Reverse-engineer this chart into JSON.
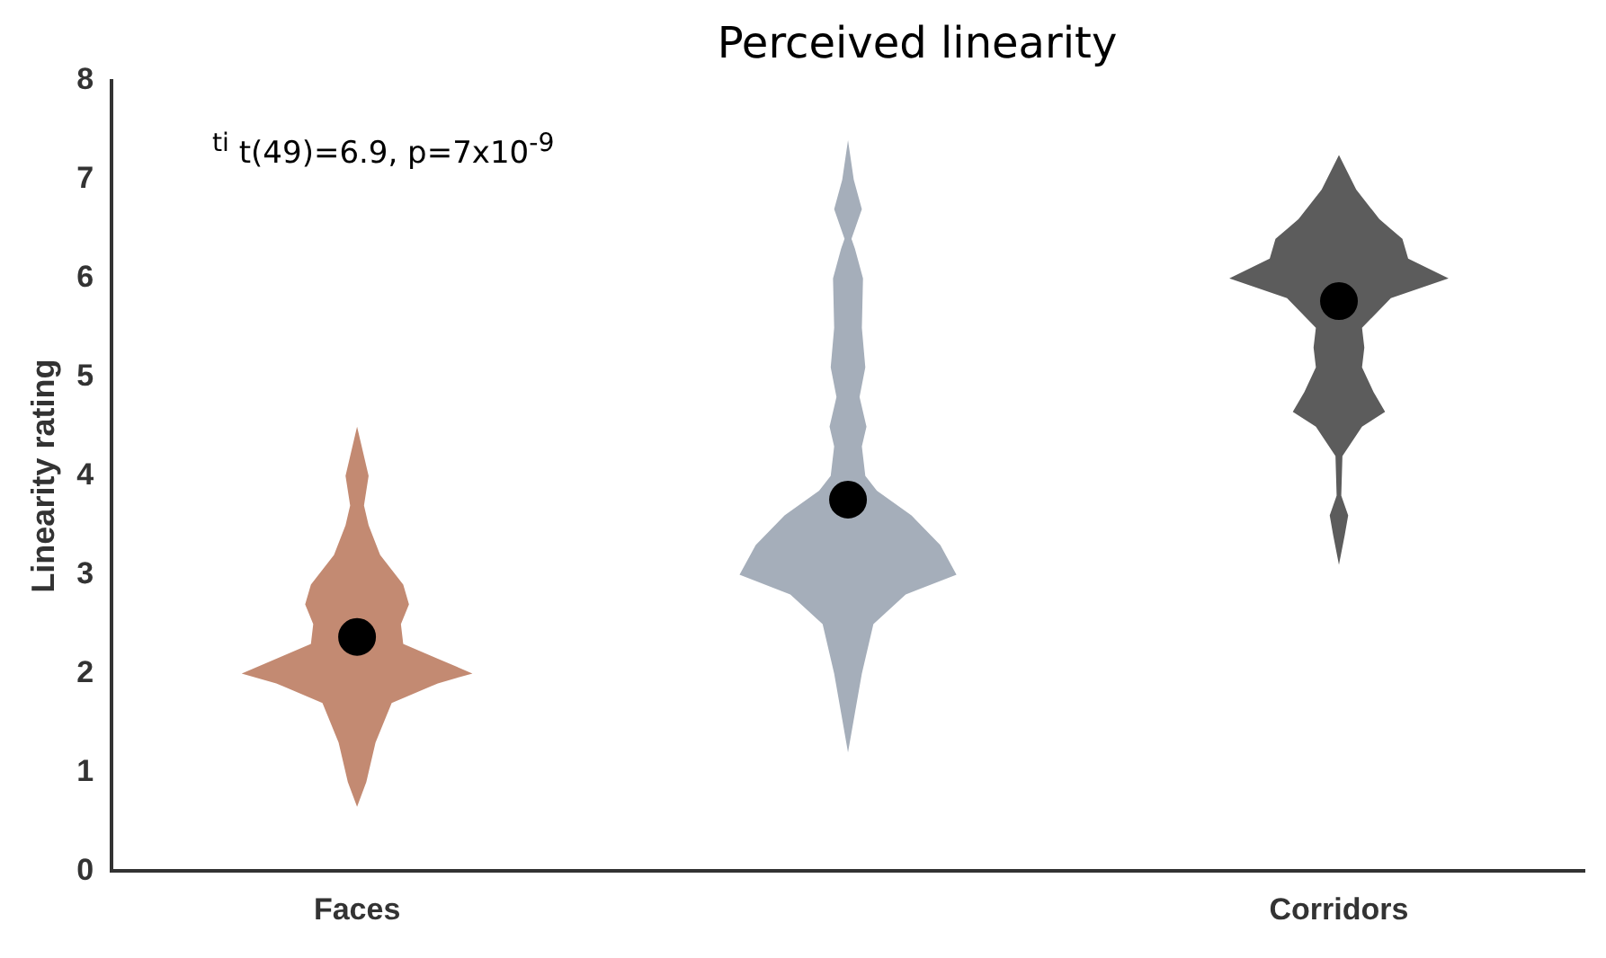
{
  "chart_data": {
    "type": "scatter",
    "title": "Perceived linearity",
    "ylabel": "Linearity rating",
    "categories": [
      "Faces",
      null,
      "Corridors"
    ],
    "ylim": [
      0,
      8
    ],
    "yticks": [
      0,
      1,
      2,
      3,
      4,
      5,
      6,
      7,
      8
    ],
    "grid": false,
    "legend": false,
    "marker": "circle",
    "annotations": [
      "$^{ti}$ t(49)=6.9, p=7x10$^{-9}$"
    ],
    "series": [
      {
        "color": "#000000",
        "values": [
          2.37,
          3.76,
          5.77
        ]
      }
    ]
  }
}
